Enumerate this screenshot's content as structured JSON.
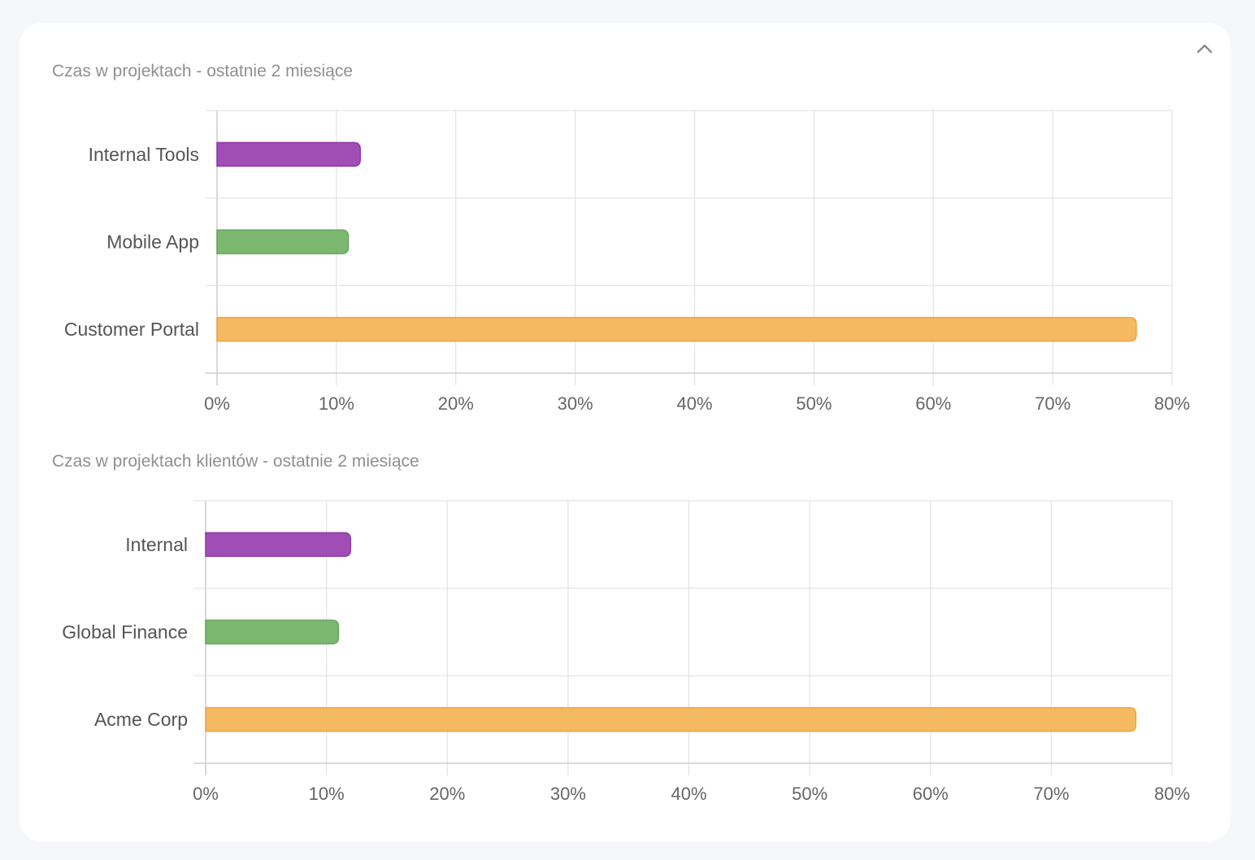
{
  "header": {
    "collapse_icon": "chevron-up-icon"
  },
  "charts": [
    {
      "title": "Czas w projektach - ostatnie 2 miesiące",
      "chart_data": {
        "type": "bar",
        "orientation": "horizontal",
        "categories": [
          "Internal Tools",
          "Mobile App",
          "Customer Portal"
        ],
        "values": [
          12,
          11,
          77
        ],
        "colors": [
          "#a14db6",
          "#7cb870",
          "#f4b961"
        ],
        "border_colors": [
          "#8e3aa6",
          "#63a65a",
          "#eda43f"
        ],
        "xlim": [
          0,
          80
        ],
        "x_ticks": [
          "0%",
          "10%",
          "20%",
          "30%",
          "40%",
          "50%",
          "60%",
          "70%",
          "80%"
        ],
        "grid": true,
        "legend": "none"
      }
    },
    {
      "title": "Czas w projektach klientów - ostatnie 2 miesiące",
      "chart_data": {
        "type": "bar",
        "orientation": "horizontal",
        "categories": [
          "Internal",
          "Global Finance",
          "Acme Corp"
        ],
        "values": [
          12,
          11,
          77
        ],
        "colors": [
          "#a14db6",
          "#7cb870",
          "#f4b961"
        ],
        "border_colors": [
          "#8e3aa6",
          "#63a65a",
          "#eda43f"
        ],
        "xlim": [
          0,
          80
        ],
        "x_ticks": [
          "0%",
          "10%",
          "20%",
          "30%",
          "40%",
          "50%",
          "60%",
          "70%",
          "80%"
        ],
        "grid": true,
        "legend": "none"
      }
    }
  ]
}
